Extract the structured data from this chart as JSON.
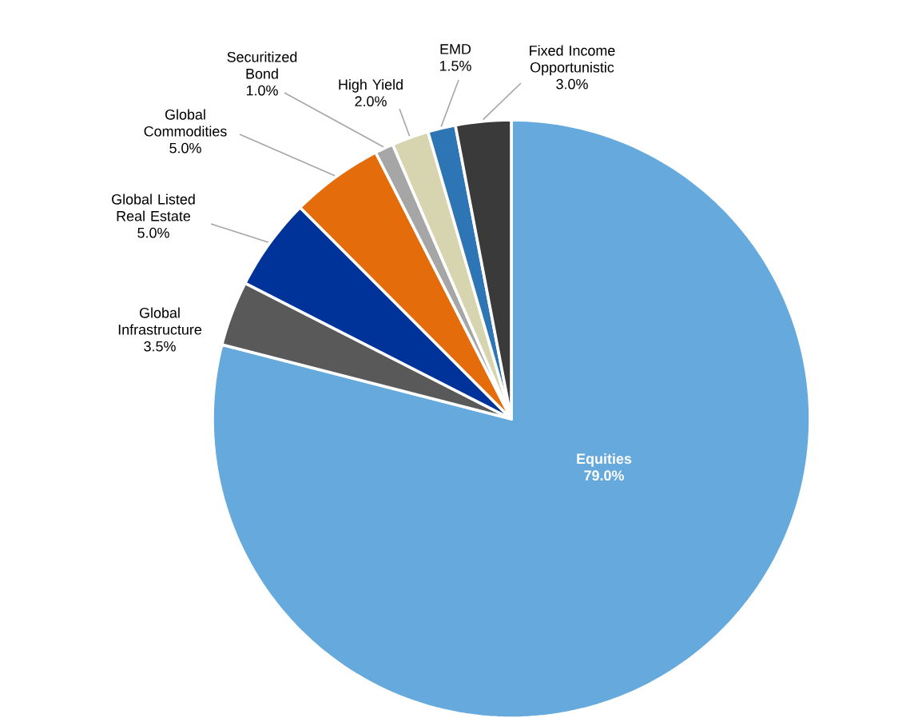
{
  "chart_data": {
    "type": "pie",
    "categories": [
      "Equities",
      "Global Infrastructure",
      "Global Listed Real Estate",
      "Global Commodities",
      "Securitized Bond",
      "High Yield",
      "EMD",
      "Fixed Income Opportunistic"
    ],
    "values": [
      79.0,
      3.5,
      5.0,
      5.0,
      1.0,
      2.0,
      1.5,
      3.0
    ],
    "colors": [
      "#66a9dc",
      "#595959",
      "#003399",
      "#e46c0a",
      "#a6a6a6",
      "#d7d4b0",
      "#2e75b6",
      "#3a3a3a"
    ],
    "value_labels": [
      "79.0%",
      "3.5%",
      "5.0%",
      "5.0%",
      "1.0%",
      "2.0%",
      "1.5%",
      "3.0%"
    ]
  }
}
